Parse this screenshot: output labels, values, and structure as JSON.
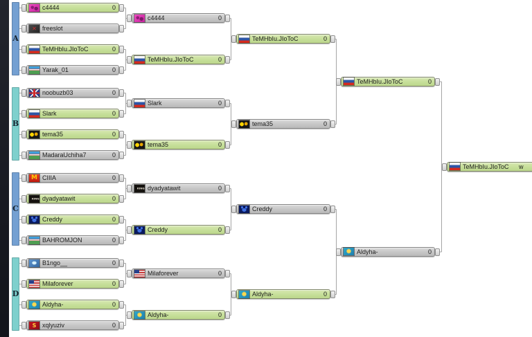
{
  "page": {
    "background": "#14161d",
    "canvas_background": "#ffffff",
    "connector_color": "#a5a5a5",
    "winner_color": "#c6df99",
    "loser_color": "#c6c6c6"
  },
  "groups": [
    {
      "label": "A",
      "color": "#74a0d2"
    },
    {
      "label": "B",
      "color": "#7ed0cd"
    },
    {
      "label": "C",
      "color": "#74a0d2"
    },
    {
      "label": "D",
      "color": "#7ed0cd"
    }
  ],
  "bracket": {
    "rounds": [
      {
        "name": "round-1",
        "slots": [
          {
            "name": "c4444",
            "flag": "pink-avatar",
            "score": "0",
            "winner": true
          },
          {
            "name": "freeslot",
            "flag": "dark-x",
            "score": "",
            "winner": false
          },
          {
            "name": "TeMHbIu.JIoToC",
            "flag": "russia",
            "score": "0",
            "winner": true
          },
          {
            "name": "Yarak_01",
            "flag": "uzbekistan",
            "score": "0",
            "winner": false
          },
          {
            "name": "noobuzb03",
            "flag": "uk",
            "score": "0",
            "winner": false
          },
          {
            "name": "Slark",
            "flag": "russia",
            "score": "0",
            "winner": true
          },
          {
            "name": "tema35",
            "flag": "black-yellow",
            "score": "0",
            "winner": true
          },
          {
            "name": "MadaraUchiha7",
            "flag": "uzbekistan",
            "score": "0",
            "winner": false
          },
          {
            "name": "CIIIA",
            "flag": "mcdonalds",
            "score": "0",
            "winner": false
          },
          {
            "name": "dyadyatawit",
            "flag": "king",
            "score": "0",
            "winner": true
          },
          {
            "name": "Creddy",
            "flag": "blue-cat",
            "score": "0",
            "winner": true
          },
          {
            "name": "BAHROMJON",
            "flag": "uzbekistan",
            "score": "0",
            "winner": false
          },
          {
            "name": "B1ngo__",
            "flag": "blue-butterfly",
            "score": "0",
            "winner": false
          },
          {
            "name": "Milaforever",
            "flag": "usa",
            "score": "0",
            "winner": true
          },
          {
            "name": "Aldyha-",
            "flag": "kazakhstan",
            "score": "0",
            "winner": true
          },
          {
            "name": "xqlyuziv",
            "flag": "superman",
            "score": "0",
            "winner": false
          }
        ]
      },
      {
        "name": "round-2",
        "slots": [
          {
            "name": "c4444",
            "flag": "pink-avatar",
            "score": "0",
            "winner": false
          },
          {
            "name": "TeMHbIu.JIoToC",
            "flag": "russia",
            "score": "0",
            "winner": true
          },
          {
            "name": "Slark",
            "flag": "russia",
            "score": "0",
            "winner": false
          },
          {
            "name": "tema35",
            "flag": "black-yellow",
            "score": "0",
            "winner": true
          },
          {
            "name": "dyadyatawit",
            "flag": "king",
            "score": "0",
            "winner": false
          },
          {
            "name": "Creddy",
            "flag": "blue-cat",
            "score": "0",
            "winner": true
          },
          {
            "name": "Milaforever",
            "flag": "usa",
            "score": "0",
            "winner": false
          },
          {
            "name": "Aldyha-",
            "flag": "kazakhstan",
            "score": "0",
            "winner": true
          }
        ]
      },
      {
        "name": "semifinals",
        "slots": [
          {
            "name": "TeMHbIu.JIoToC",
            "flag": "russia",
            "score": "0",
            "winner": true
          },
          {
            "name": "tema35",
            "flag": "black-yellow",
            "score": "0",
            "winner": false
          },
          {
            "name": "Creddy",
            "flag": "blue-cat",
            "score": "0",
            "winner": false
          },
          {
            "name": "Aldyha-",
            "flag": "kazakhstan",
            "score": "0",
            "winner": true
          }
        ]
      },
      {
        "name": "final",
        "slots": [
          {
            "name": "TeMHbIu.JIoToC",
            "flag": "russia",
            "score": "0",
            "winner": true
          },
          {
            "name": "Aldyha-",
            "flag": "kazakhstan",
            "score": "0",
            "winner": false
          }
        ]
      },
      {
        "name": "winner",
        "slots": [
          {
            "name": "TeMHbIu.JIoToC",
            "flag": "russia",
            "score": "w",
            "winner": true
          }
        ]
      }
    ]
  }
}
